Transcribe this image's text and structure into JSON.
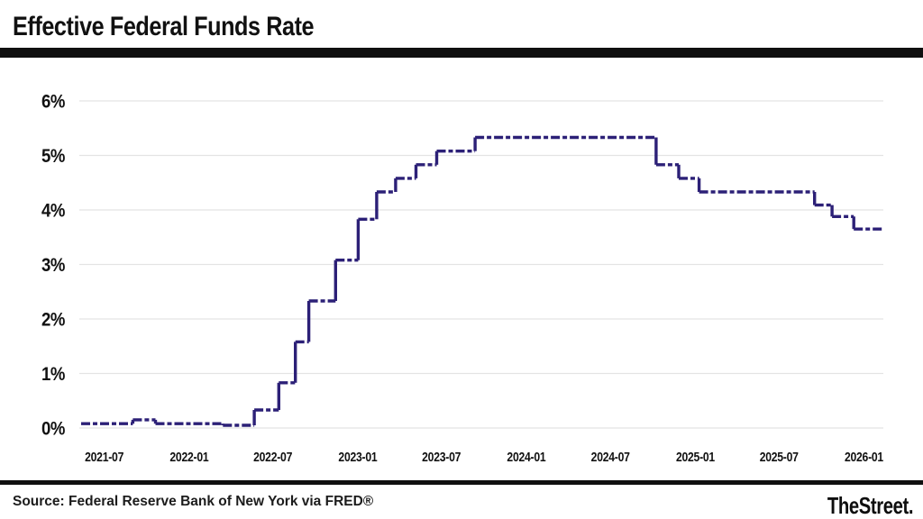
{
  "header": {
    "title": "Effective Federal Funds Rate"
  },
  "footer": {
    "source": "Source: Federal Reserve Bank of New York via FRED®",
    "brand": "TheStreet."
  },
  "chart_data": {
    "type": "line",
    "subtype": "step-after",
    "line_style": "dashed",
    "title": "Effective Federal Funds Rate",
    "xlabel": "",
    "ylabel": "",
    "ylim": [
      0,
      6
    ],
    "y_ticks": [
      0,
      1,
      2,
      3,
      4,
      5,
      6
    ],
    "y_tick_labels": [
      "0%",
      "1%",
      "2%",
      "3%",
      "4%",
      "5%",
      "6%"
    ],
    "x_ticks": [
      "2021-07",
      "2022-01",
      "2022-07",
      "2023-01",
      "2023-07",
      "2024-01",
      "2024-07",
      "2025-01",
      "2025-07",
      "2026-01"
    ],
    "x_domain": [
      "2021-05-12",
      "2026-02-12"
    ],
    "grid": "horizontal",
    "legend": "none",
    "colors": {
      "line": "#2c2077",
      "grid": "#e4e4e4",
      "text": "#111111"
    },
    "series": [
      {
        "name": "Effective Federal Funds Rate (%)",
        "points": [
          [
            "2021-05-12",
            0.08
          ],
          [
            "2021-09-01",
            0.15
          ],
          [
            "2021-10-20",
            0.08
          ],
          [
            "2022-03-15",
            0.05
          ],
          [
            "2022-05-22",
            0.33
          ],
          [
            "2022-07-14",
            0.83
          ],
          [
            "2022-08-19",
            1.58
          ],
          [
            "2022-09-17",
            2.33
          ],
          [
            "2022-11-14",
            3.08
          ],
          [
            "2023-01-02",
            3.83
          ],
          [
            "2023-02-11",
            4.33
          ],
          [
            "2023-03-24",
            4.58
          ],
          [
            "2023-05-07",
            4.83
          ],
          [
            "2023-06-21",
            5.08
          ],
          [
            "2023-09-12",
            5.33
          ],
          [
            "2024-10-08",
            4.83
          ],
          [
            "2024-11-26",
            4.58
          ],
          [
            "2025-01-09",
            4.33
          ],
          [
            "2025-09-16",
            4.09
          ],
          [
            "2025-10-24",
            3.88
          ],
          [
            "2025-12-10",
            3.65
          ],
          [
            "2026-02-12",
            3.65
          ]
        ]
      }
    ]
  }
}
